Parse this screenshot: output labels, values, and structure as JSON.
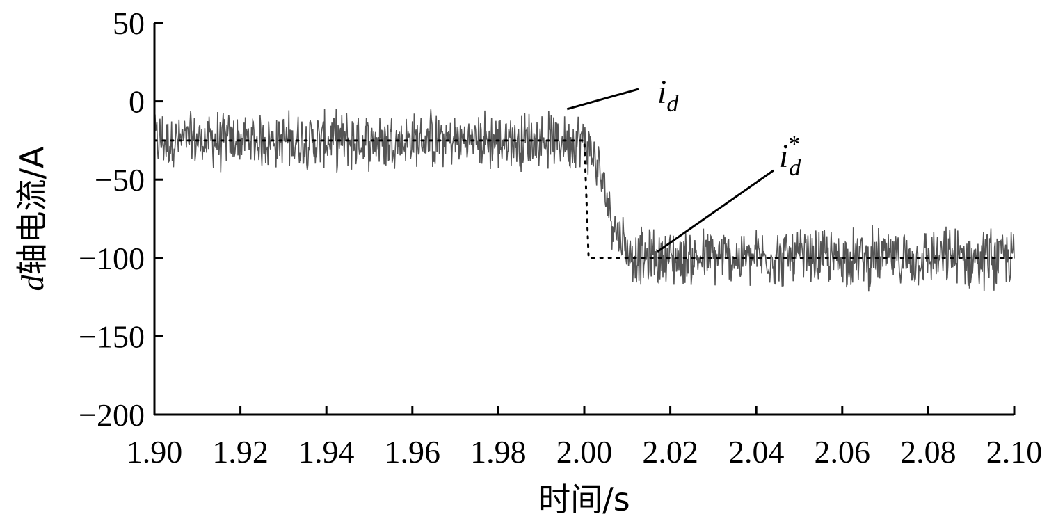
{
  "chart_data": {
    "type": "line",
    "title": "",
    "xlabel": "时间/s",
    "ylabel_italic": "d",
    "ylabel": "轴电流/A",
    "xlim": [
      1.9,
      2.1
    ],
    "ylim": [
      -200,
      50
    ],
    "x_ticks": [
      "1.90",
      "1.92",
      "1.94",
      "1.96",
      "1.98",
      "2.00",
      "2.02",
      "2.04",
      "2.06",
      "2.08",
      "2.10"
    ],
    "y_ticks": [
      "50",
      "0",
      "−50",
      "−100",
      "−150",
      "−200"
    ],
    "grid": false,
    "series": [
      {
        "name": "i_d",
        "style": "solid-noisy",
        "color": "#555555",
        "x": [
          1.9,
          2.0,
          2.002,
          2.004,
          2.006,
          2.008,
          2.01,
          2.014,
          2.018,
          2.022,
          2.03,
          2.04,
          2.06,
          2.08,
          2.1
        ],
        "y": [
          -25,
          -25,
          -35,
          -50,
          -70,
          -85,
          -95,
          -100,
          -100,
          -100,
          -100,
          -100,
          -100,
          -100,
          -100
        ],
        "noise_amplitude": 22
      },
      {
        "name": "i_d*",
        "style": "dotted",
        "color": "#000000",
        "x": [
          1.9,
          2.0,
          2.001,
          2.1
        ],
        "y": [
          -25,
          -25,
          -100,
          -100
        ]
      }
    ],
    "annotations": [
      {
        "label_main": "i",
        "label_sub": "d",
        "label_sup": "",
        "points_to": [
          1.996,
          -5
        ]
      },
      {
        "label_main": "i",
        "label_sub": "d",
        "label_sup": "*",
        "points_to": [
          2.017,
          -96
        ]
      }
    ]
  }
}
